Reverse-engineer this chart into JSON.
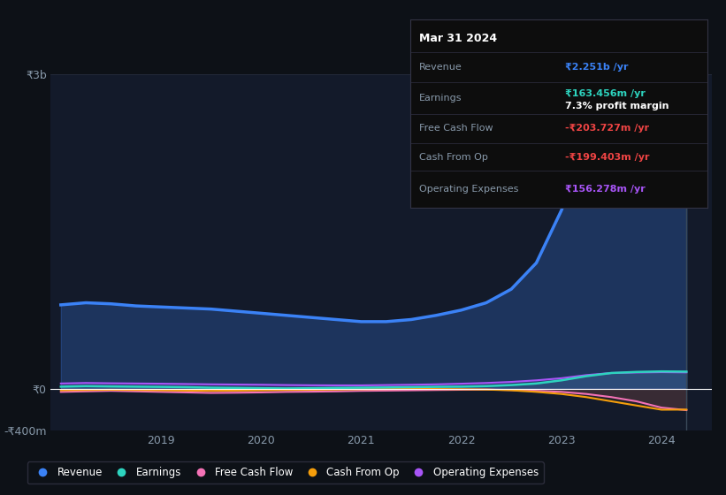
{
  "bg_color": "#0d1117",
  "plot_bg_color": "#131a2a",
  "grid_color": "#2a3040",
  "zero_line_color": "#ffffff",
  "x_years": [
    2018.0,
    2018.25,
    2018.5,
    2018.75,
    2019.0,
    2019.25,
    2019.5,
    2019.75,
    2020.0,
    2020.25,
    2020.5,
    2020.75,
    2021.0,
    2021.25,
    2021.5,
    2021.75,
    2022.0,
    2022.25,
    2022.5,
    2022.75,
    2023.0,
    2023.25,
    2023.5,
    2023.75,
    2024.0,
    2024.25
  ],
  "revenue": [
    800,
    820,
    810,
    790,
    780,
    770,
    760,
    740,
    720,
    700,
    680,
    660,
    640,
    640,
    660,
    700,
    750,
    820,
    950,
    1200,
    1700,
    2300,
    2750,
    2800,
    2500,
    2251
  ],
  "earnings": [
    20,
    25,
    22,
    20,
    18,
    15,
    10,
    8,
    5,
    3,
    5,
    8,
    10,
    12,
    15,
    18,
    20,
    25,
    35,
    50,
    80,
    120,
    150,
    160,
    165,
    163
  ],
  "free_cash_flow": [
    -30,
    -25,
    -20,
    -25,
    -30,
    -35,
    -40,
    -38,
    -35,
    -30,
    -28,
    -25,
    -20,
    -18,
    -15,
    -12,
    -10,
    -8,
    -12,
    -20,
    -30,
    -50,
    -80,
    -120,
    -180,
    -204
  ],
  "cash_from_op": [
    -15,
    -12,
    -10,
    -12,
    -15,
    -18,
    -20,
    -18,
    -15,
    -12,
    -10,
    -8,
    -5,
    -3,
    -2,
    -3,
    -5,
    -8,
    -15,
    -30,
    -50,
    -80,
    -120,
    -160,
    -200,
    -199
  ],
  "operating_expenses": [
    50,
    55,
    52,
    50,
    48,
    45,
    42,
    40,
    38,
    35,
    33,
    32,
    32,
    35,
    38,
    42,
    48,
    55,
    65,
    80,
    100,
    130,
    150,
    155,
    158,
    156
  ],
  "revenue_color": "#3b82f6",
  "earnings_color": "#2dd4bf",
  "fcf_color": "#f472b6",
  "cashop_color": "#f59e0b",
  "opex_color": "#a855f7",
  "ylim": [
    -400,
    3000
  ],
  "yticks": [
    -400,
    0,
    3000
  ],
  "ytick_labels": [
    "-₹400m",
    "₹0",
    "₹3b"
  ],
  "xtick_years": [
    2019,
    2020,
    2021,
    2022,
    2023,
    2024
  ],
  "legend_items": [
    "Revenue",
    "Earnings",
    "Free Cash Flow",
    "Cash From Op",
    "Operating Expenses"
  ],
  "tooltip_title": "Mar 31 2024",
  "tooltip_revenue_label": "Revenue",
  "tooltip_revenue_val": "₹2.251b /yr",
  "tooltip_earnings_label": "Earnings",
  "tooltip_earnings_val": "₹163.456m /yr",
  "tooltip_margin": "7.3% profit margin",
  "tooltip_fcf_label": "Free Cash Flow",
  "tooltip_fcf_val": "-₹203.727m /yr",
  "tooltip_cashop_label": "Cash From Op",
  "tooltip_cashop_val": "-₹199.403m /yr",
  "tooltip_opex_label": "Operating Expenses",
  "tooltip_opex_val": "₹156.278m /yr",
  "neg_color": "#ef4444",
  "label_color": "#8899aa",
  "white": "#ffffff"
}
